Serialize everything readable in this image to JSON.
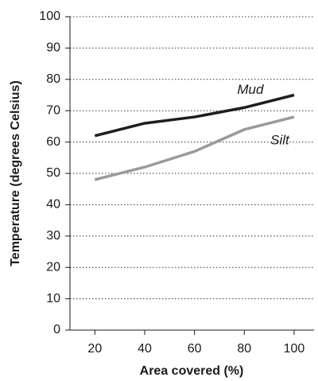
{
  "chart_data": {
    "type": "line",
    "x_label": "Area covered (%)",
    "y_label": "Temperature (degrees Celsius)",
    "x": [
      20,
      40,
      60,
      80,
      100
    ],
    "series": [
      {
        "name": "Mud",
        "color": "#1e1e1e",
        "values": [
          62,
          66,
          68,
          71,
          75
        ]
      },
      {
        "name": "Silt",
        "color": "#9a9a9a",
        "values": [
          48,
          52,
          57,
          64,
          68
        ]
      }
    ],
    "xlim": [
      10,
      108
    ],
    "xticks": [
      20,
      40,
      60,
      80,
      100
    ],
    "ylim": [
      0,
      100
    ],
    "yticks": [
      0,
      10,
      20,
      30,
      40,
      50,
      60,
      70,
      80,
      90,
      100
    ],
    "grid": true
  }
}
